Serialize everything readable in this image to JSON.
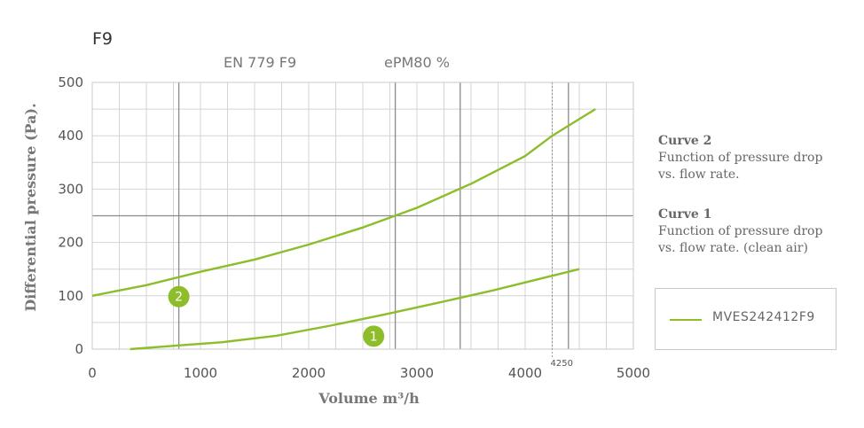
{
  "chart_data": {
    "type": "line",
    "title": "F9",
    "header_labels": [
      "EN 779 F9",
      "ePM80 %"
    ],
    "xlabel": "Volume m³/h",
    "ylabel": "Differential pressure (Pa).",
    "xlim": [
      0,
      5000
    ],
    "ylim": [
      0,
      500
    ],
    "x_ticks": [
      "0",
      "1000",
      "2000",
      "3000",
      "4000",
      "5000"
    ],
    "y_ticks": [
      "0",
      "100",
      "200",
      "300",
      "400",
      "500"
    ],
    "grid": true,
    "reference_line": {
      "x": 4250,
      "label": "4250",
      "style": "dotted"
    },
    "series": [
      {
        "marker": "2",
        "marker_at": 800,
        "points": [
          [
            0,
            100
          ],
          [
            500,
            120
          ],
          [
            1000,
            145
          ],
          [
            1500,
            168
          ],
          [
            2000,
            196
          ],
          [
            2500,
            228
          ],
          [
            3000,
            265
          ],
          [
            3500,
            310
          ],
          [
            4000,
            362
          ],
          [
            4250,
            400
          ],
          [
            4650,
            450
          ]
        ]
      },
      {
        "marker": "1",
        "marker_at": 2600,
        "points": [
          [
            350,
            0
          ],
          [
            800,
            7
          ],
          [
            1200,
            13
          ],
          [
            1700,
            25
          ],
          [
            2200,
            44
          ],
          [
            2700,
            65
          ],
          [
            3200,
            87
          ],
          [
            3700,
            110
          ],
          [
            4200,
            135
          ],
          [
            4500,
            150
          ]
        ]
      }
    ],
    "colors": {
      "curve": "#8dbd2a",
      "marker": "#8dbd2a"
    }
  },
  "notes": [
    {
      "title": "Curve 2",
      "lines": [
        "Function of pressure drop",
        "vs. flow rate."
      ]
    },
    {
      "title": "Curve 1",
      "lines": [
        "Function of pressure drop",
        "vs. flow rate. (clean air)"
      ]
    }
  ],
  "legend": {
    "label": "MVES242412F9"
  }
}
